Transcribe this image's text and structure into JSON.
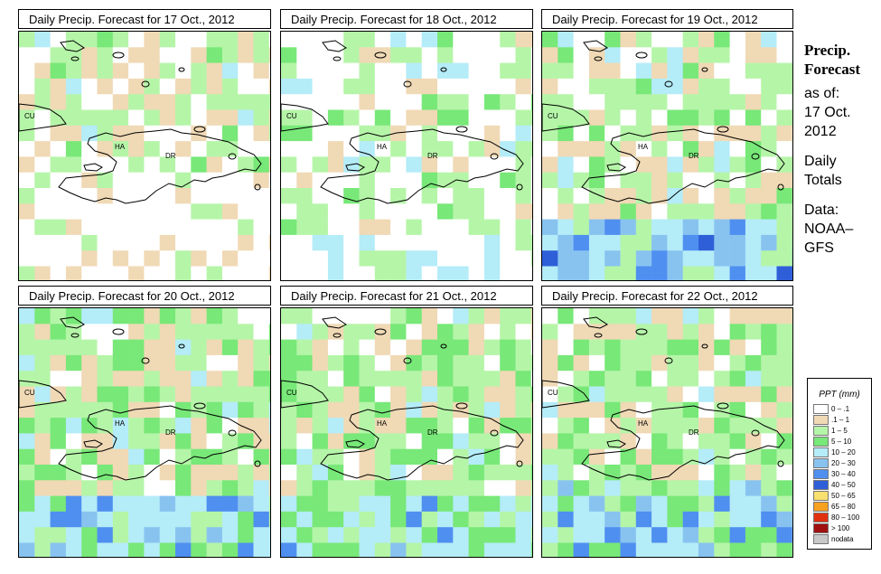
{
  "panels": [
    {
      "title": "Daily Precip. Forecast for  17 Oct., 2012",
      "day": 0
    },
    {
      "title": "Daily Precip. Forecast for  18 Oct., 2012",
      "day": 1
    },
    {
      "title": "Daily Precip. Forecast for  19 Oct., 2012",
      "day": 2
    },
    {
      "title": "Daily Precip. Forecast for  20 Oct., 2012",
      "day": 3
    },
    {
      "title": "Daily Precip. Forecast for  21 Oct., 2012",
      "day": 4
    },
    {
      "title": "Daily Precip. Forecast for  22 Oct., 2012",
      "day": 5
    }
  ],
  "map_labels": {
    "cuba": "CU",
    "haiti": "HA",
    "dominican_republic": "DR"
  },
  "side_info": {
    "heading_line1": "Precip.",
    "heading_line2": "Forecast",
    "as_of_label": "as of:",
    "date_line1": "17 Oct.",
    "date_line2": "2012",
    "daily_line1": "Daily",
    "daily_line2": "Totals",
    "data_line1": "Data:",
    "data_line2": "NOAA–",
    "data_line3": "GFS"
  },
  "legend": {
    "title": "PPT (mm)",
    "classes": [
      {
        "label": "0 – .1",
        "color": "#ffffff"
      },
      {
        "label": ".1 – 1",
        "color": "#f0d9b5"
      },
      {
        "label": "1 – 5",
        "color": "#b5f5a8"
      },
      {
        "label": "5 – 10",
        "color": "#78e878"
      },
      {
        "label": "10 – 20",
        "color": "#b4ecf8"
      },
      {
        "label": "20 – 30",
        "color": "#88c3f0"
      },
      {
        "label": "30 – 40",
        "color": "#4f8ff0"
      },
      {
        "label": "40 – 50",
        "color": "#2f5fd8"
      },
      {
        "label": "50 – 65",
        "color": "#f8e070"
      },
      {
        "label": "65 – 80",
        "color": "#f8a020"
      },
      {
        "label": "80 – 100",
        "color": "#e03010"
      },
      {
        "label": "> 100",
        "color": "#a01010"
      },
      {
        "label": "nodata",
        "color": "#c8c8c8"
      }
    ]
  }
}
